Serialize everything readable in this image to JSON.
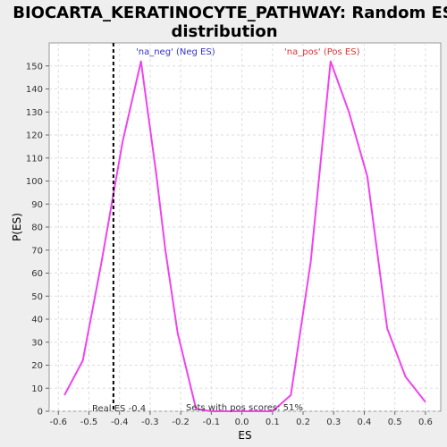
{
  "chart_data": {
    "type": "line",
    "title": "BIOCARTA_KERATINOCYTE_PATHWAY: Random ES",
    "subtitle": "distribution",
    "xlabel": "ES",
    "ylabel": "P(ES)",
    "xlim": [
      -0.63,
      0.65
    ],
    "ylim": [
      0,
      160
    ],
    "xticks": [
      -0.6,
      -0.5,
      -0.4,
      -0.3,
      -0.2,
      -0.1,
      0.0,
      0.1,
      0.2,
      0.3,
      0.4,
      0.5,
      0.6
    ],
    "xtick_labels": [
      "-0.6",
      "-0.5",
      "-0.4",
      "-0.3",
      "-0.2",
      "-0.1",
      "0.0",
      "0.1",
      "0.2",
      "0.3",
      "0.4",
      "0.5",
      "0.6"
    ],
    "yticks": [
      0,
      10,
      20,
      30,
      40,
      50,
      60,
      70,
      80,
      90,
      100,
      110,
      120,
      130,
      140,
      150
    ],
    "ytick_labels": [
      "0",
      "10",
      "20",
      "30",
      "40",
      "50",
      "60",
      "70",
      "80",
      "90",
      "100",
      "110",
      "120",
      "130",
      "140",
      "150"
    ],
    "grid": true,
    "series": [
      {
        "color": "#ee44ee",
        "x": [
          -0.58,
          -0.52,
          -0.46,
          -0.39,
          -0.33,
          -0.28,
          -0.25,
          -0.21,
          -0.15,
          -0.1,
          0.0,
          0.1,
          0.16,
          0.225,
          0.29,
          0.35,
          0.41,
          0.475,
          0.535,
          0.6
        ],
        "y": [
          7,
          22,
          64,
          117,
          152,
          103,
          70,
          34,
          1,
          0,
          0,
          0,
          7,
          65,
          152,
          130,
          102,
          36,
          15,
          4
        ]
      }
    ],
    "annotations": {
      "neg_label": "'na_neg' (Neg ES)",
      "pos_label": "'na_pos' (Pos ES)",
      "real_es_label": "Real ES -0.4",
      "real_es_value": -0.42,
      "pos_scores_label": "Sets with pos scores: 51%"
    },
    "colors": {
      "line": "#ee44ee",
      "neg_label": "#3333cc",
      "pos_label": "#dd3333",
      "real_es_line": "#000000",
      "plot_background": "#ffffff",
      "grid": "#dddddd"
    }
  }
}
